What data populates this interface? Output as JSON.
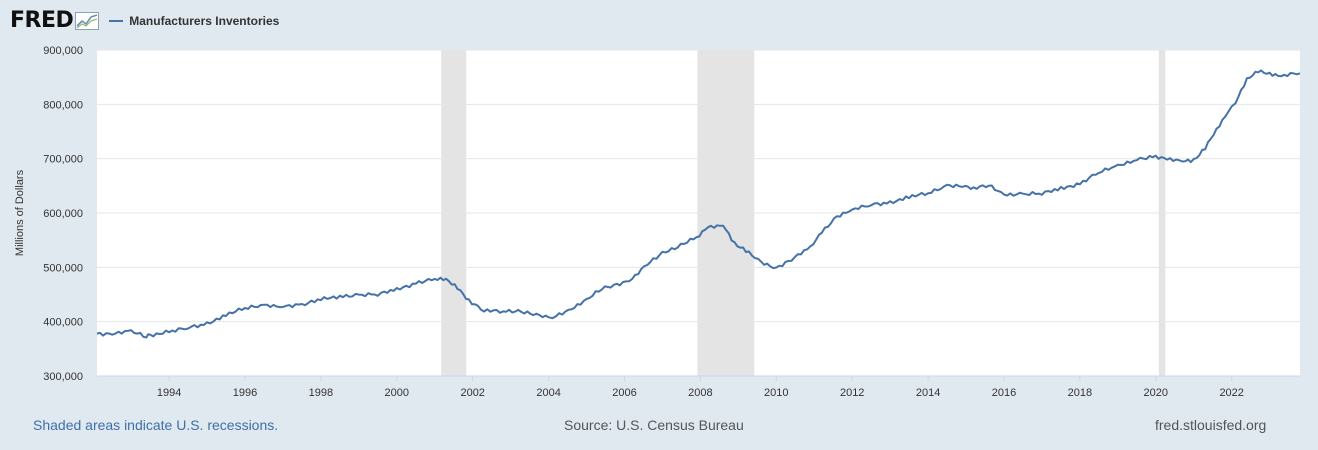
{
  "header": {
    "logo_text": "FRED",
    "legend_label": "Manufacturers Inventories",
    "line_color": "#4572a7"
  },
  "footer": {
    "left": "Shaded areas indicate U.S. recessions.",
    "center": "Source: U.S. Census Bureau",
    "right": "fred.stlouisfed.org"
  },
  "chart_data": {
    "type": "line",
    "title": "",
    "xlabel": "",
    "ylabel": "Millions of Dollars",
    "xlim": [
      1992.1,
      2023.8
    ],
    "ylim": [
      300000,
      900000
    ],
    "yticks": [
      300000,
      400000,
      500000,
      600000,
      700000,
      800000,
      900000
    ],
    "ytick_labels": [
      "300,000",
      "400,000",
      "500,000",
      "600,000",
      "700,000",
      "800,000",
      "900,000"
    ],
    "xticks": [
      1994,
      1996,
      1998,
      2000,
      2002,
      2004,
      2006,
      2008,
      2010,
      2012,
      2014,
      2016,
      2018,
      2020,
      2022
    ],
    "xtick_labels": [
      "1994",
      "1996",
      "1998",
      "2000",
      "2002",
      "2004",
      "2006",
      "2008",
      "2010",
      "2012",
      "2014",
      "2016",
      "2018",
      "2020",
      "2022"
    ],
    "grid": true,
    "legend_position": "top-left",
    "recessions": [
      [
        2001.17,
        2001.83
      ],
      [
        2007.92,
        2009.42
      ],
      [
        2020.08,
        2020.25
      ]
    ],
    "series": [
      {
        "name": "Manufacturers Inventories",
        "color": "#4572a7",
        "x": [
          1992.1,
          1992.5,
          1993.0,
          1993.4,
          1993.5,
          1994.0,
          1994.5,
          1995.0,
          1995.5,
          1996.0,
          1996.5,
          1997.0,
          1997.5,
          1998.0,
          1998.5,
          1999.0,
          1999.5,
          2000.0,
          2000.5,
          2001.0,
          2001.3,
          2001.6,
          2001.9,
          2002.3,
          2002.8,
          2003.2,
          2003.6,
          2004.0,
          2004.2,
          2004.6,
          2005.0,
          2005.4,
          2005.8,
          2006.2,
          2006.6,
          2007.0,
          2007.4,
          2007.9,
          2008.2,
          2008.6,
          2008.9,
          2009.2,
          2009.6,
          2010.0,
          2010.4,
          2010.9,
          2011.2,
          2011.6,
          2012.0,
          2012.5,
          2013.0,
          2013.5,
          2014.0,
          2014.5,
          2014.9,
          2015.2,
          2015.6,
          2016.0,
          2016.5,
          2017.0,
          2017.5,
          2018.0,
          2018.5,
          2019.0,
          2019.5,
          2020.0,
          2020.3,
          2020.7,
          2021.0,
          2021.3,
          2021.6,
          2021.9,
          2022.1,
          2022.4,
          2022.7,
          2023.0,
          2023.3,
          2023.8
        ],
        "y": [
          378000,
          379000,
          381000,
          372000,
          376000,
          381000,
          388000,
          396000,
          414000,
          424000,
          429000,
          430000,
          431000,
          440000,
          447000,
          450000,
          450000,
          458000,
          472000,
          480000,
          476000,
          462000,
          440000,
          420000,
          418000,
          420000,
          416000,
          405000,
          410000,
          425000,
          440000,
          460000,
          468000,
          480000,
          505000,
          525000,
          540000,
          555000,
          572000,
          578000,
          545000,
          530000,
          508000,
          500000,
          515000,
          535000,
          565000,
          595000,
          605000,
          615000,
          620000,
          630000,
          635000,
          650000,
          652000,
          645000,
          650000,
          635000,
          635000,
          635000,
          645000,
          655000,
          675000,
          685000,
          700000,
          705000,
          698000,
          695000,
          698000,
          720000,
          752000,
          785000,
          805000,
          845000,
          860000,
          858000,
          852000,
          857000
        ]
      }
    ]
  }
}
